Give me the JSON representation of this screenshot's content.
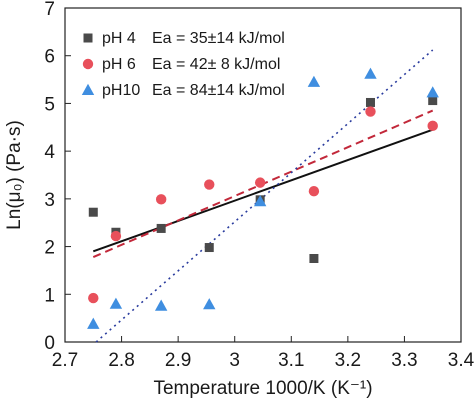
{
  "chart_data": {
    "type": "scatter",
    "xlabel": "Temperature 1000/K (K⁻¹)",
    "ylabel": "Ln(μ₀) (Pa·s)",
    "xlim": [
      2.7,
      3.4
    ],
    "ylim": [
      0,
      7
    ],
    "xticks": [
      "2.7",
      "2.8",
      "2.9",
      "3",
      "3.1",
      "3.2",
      "3.3",
      "3.4"
    ],
    "yticks": [
      "0",
      "1",
      "2",
      "3",
      "4",
      "5",
      "6",
      "7"
    ],
    "grid": false,
    "legend_position": "top-left",
    "series": [
      {
        "name": "pH 4",
        "ea_label": "Ea = 35±14 kJ/mol",
        "marker": "square",
        "color": "#4a4a4a",
        "points": [
          [
            2.75,
            2.72
          ],
          [
            2.79,
            2.3
          ],
          [
            2.87,
            2.38
          ],
          [
            2.955,
            1.98
          ],
          [
            3.045,
            2.98
          ],
          [
            3.14,
            1.75
          ],
          [
            3.24,
            5.02
          ],
          [
            3.35,
            5.06
          ]
        ],
        "fit": {
          "x": [
            2.75,
            3.35
          ],
          "y": [
            1.9,
            4.45
          ],
          "line_style": "solid",
          "color": "#111111"
        }
      },
      {
        "name": "pH 6",
        "ea_label": "Ea = 42± 8 kJ/mol",
        "marker": "circle",
        "color": "#e8505b",
        "points": [
          [
            2.75,
            0.92
          ],
          [
            2.79,
            2.22
          ],
          [
            2.87,
            2.99
          ],
          [
            2.955,
            3.3
          ],
          [
            3.045,
            3.34
          ],
          [
            3.14,
            3.16
          ],
          [
            3.24,
            4.83
          ],
          [
            3.35,
            4.53
          ]
        ],
        "fit": {
          "x": [
            2.75,
            3.35
          ],
          "y": [
            1.78,
            4.85
          ],
          "line_style": "dashed",
          "color": "#c2283a"
        }
      },
      {
        "name": "pH10",
        "ea_label": "Ea = 84±14 kJ/mol",
        "marker": "triangle",
        "color": "#3f8ee0",
        "points": [
          [
            2.75,
            0.38
          ],
          [
            2.79,
            0.8
          ],
          [
            2.87,
            0.76
          ],
          [
            2.955,
            0.79
          ],
          [
            3.045,
            2.95
          ],
          [
            3.14,
            5.45
          ],
          [
            3.24,
            5.62
          ],
          [
            3.35,
            5.23
          ]
        ],
        "fit": {
          "x": [
            2.755,
            3.35
          ],
          "y": [
            0.0,
            6.12
          ],
          "line_style": "dotted",
          "color": "#2a3c9e"
        }
      }
    ]
  }
}
